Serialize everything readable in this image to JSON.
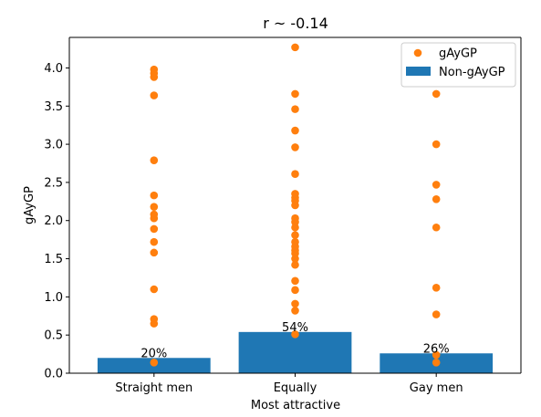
{
  "chart_data": {
    "type": "bar",
    "title": "r ~ -0.14",
    "xlabel": "Most attractive",
    "ylabel": "gAyGP",
    "categories": [
      "Straight men",
      "Equally",
      "Gay men"
    ],
    "ylim": [
      0,
      4.4
    ],
    "yticks": [
      0.0,
      0.5,
      1.0,
      1.5,
      2.0,
      2.5,
      3.0,
      3.5,
      4.0
    ],
    "ytick_labels": [
      "0.0",
      "0.5",
      "1.0",
      "1.5",
      "2.0",
      "2.5",
      "3.0",
      "3.5",
      "4.0"
    ],
    "grid": false,
    "legend_position": "top-right",
    "series": [
      {
        "name": "Non-gAyGP",
        "kind": "bar",
        "color": "#1f77b4",
        "values": [
          0.2,
          0.54,
          0.26
        ],
        "labels": [
          "20%",
          "54%",
          "26%"
        ]
      },
      {
        "name": "gAyGP",
        "kind": "scatter",
        "color": "#ff7f0e",
        "points": [
          [
            [
              0.14,
              0.65,
              0.71,
              1.1,
              1.58,
              1.72,
              1.89,
              2.03,
              2.08,
              2.18,
              2.33,
              2.79,
              3.64,
              3.88,
              3.93,
              3.98
            ]
          ],
          [
            [
              0.51,
              0.82,
              0.91,
              1.09,
              1.21,
              1.42,
              1.5,
              1.57,
              1.61,
              1.66,
              1.72,
              1.81,
              1.91,
              1.98,
              2.03,
              2.2,
              2.26,
              2.3,
              2.35,
              2.61,
              2.96,
              3.18,
              3.46,
              3.66,
              4.27
            ]
          ],
          [
            [
              0.14,
              0.24,
              0.77,
              1.12,
              1.91,
              2.28,
              2.47,
              3.0,
              3.66
            ]
          ]
        ]
      }
    ]
  }
}
